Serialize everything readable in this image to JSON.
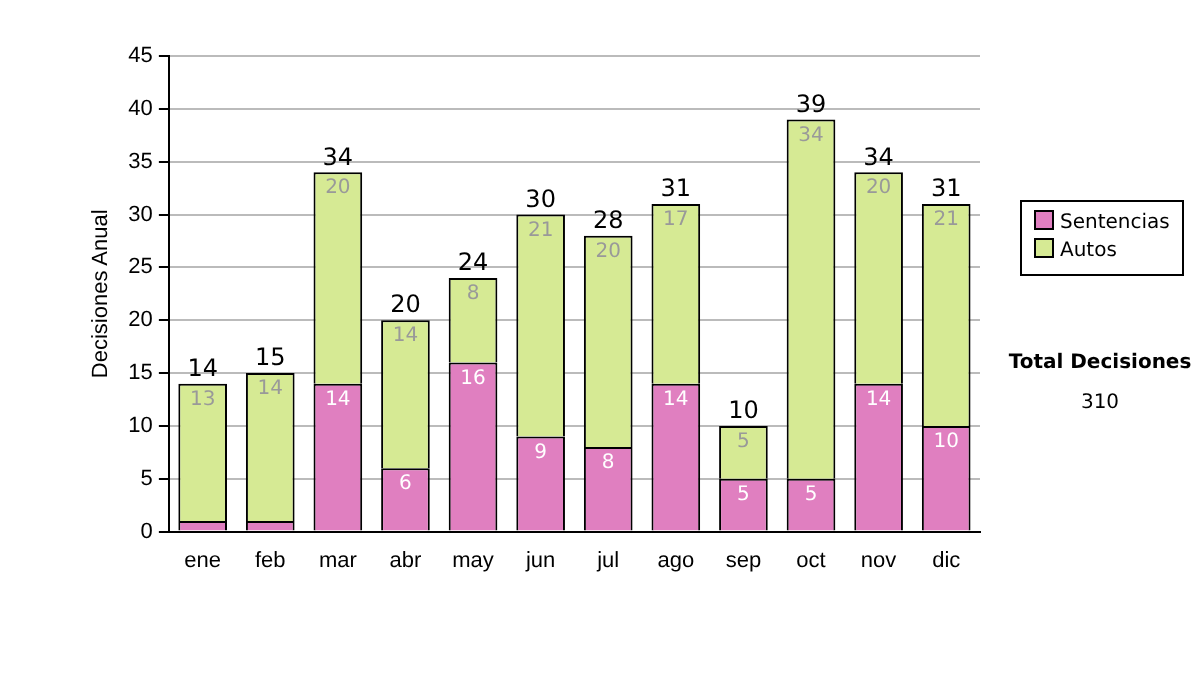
{
  "chart_data": {
    "type": "bar",
    "stacked": true,
    "ylabel": "Decisiones Anual",
    "categories": [
      "ene",
      "feb",
      "mar",
      "abr",
      "may",
      "jun",
      "jul",
      "ago",
      "sep",
      "oct",
      "nov",
      "dic"
    ],
    "series": [
      {
        "name": "Sentencias",
        "color": "#e07fc0",
        "values": [
          1,
          1,
          14,
          6,
          16,
          9,
          8,
          14,
          5,
          5,
          14,
          10
        ],
        "value_labels": [
          null,
          null,
          "14",
          "6",
          "16",
          "9",
          "8",
          "14",
          "5",
          "5",
          "14",
          "10"
        ]
      },
      {
        "name": "Autos",
        "color": "#d6ea94",
        "values": [
          13,
          14,
          20,
          14,
          8,
          21,
          20,
          17,
          5,
          34,
          20,
          21
        ],
        "value_labels": [
          "13",
          "14",
          "20",
          "14",
          "8",
          "21",
          "20",
          "17",
          "5",
          "34",
          "20",
          "21"
        ]
      }
    ],
    "totals": [
      "14",
      "15",
      "34",
      "20",
      "24",
      "30",
      "28",
      "31",
      "10",
      "39",
      "34",
      "31"
    ],
    "ylim": [
      0,
      45
    ],
    "yticks": [
      0,
      5,
      10,
      15,
      20,
      25,
      30,
      35,
      40,
      45
    ],
    "grid": "y",
    "legend": "right",
    "annotations": [
      "Total Decisiones",
      "310"
    ]
  }
}
